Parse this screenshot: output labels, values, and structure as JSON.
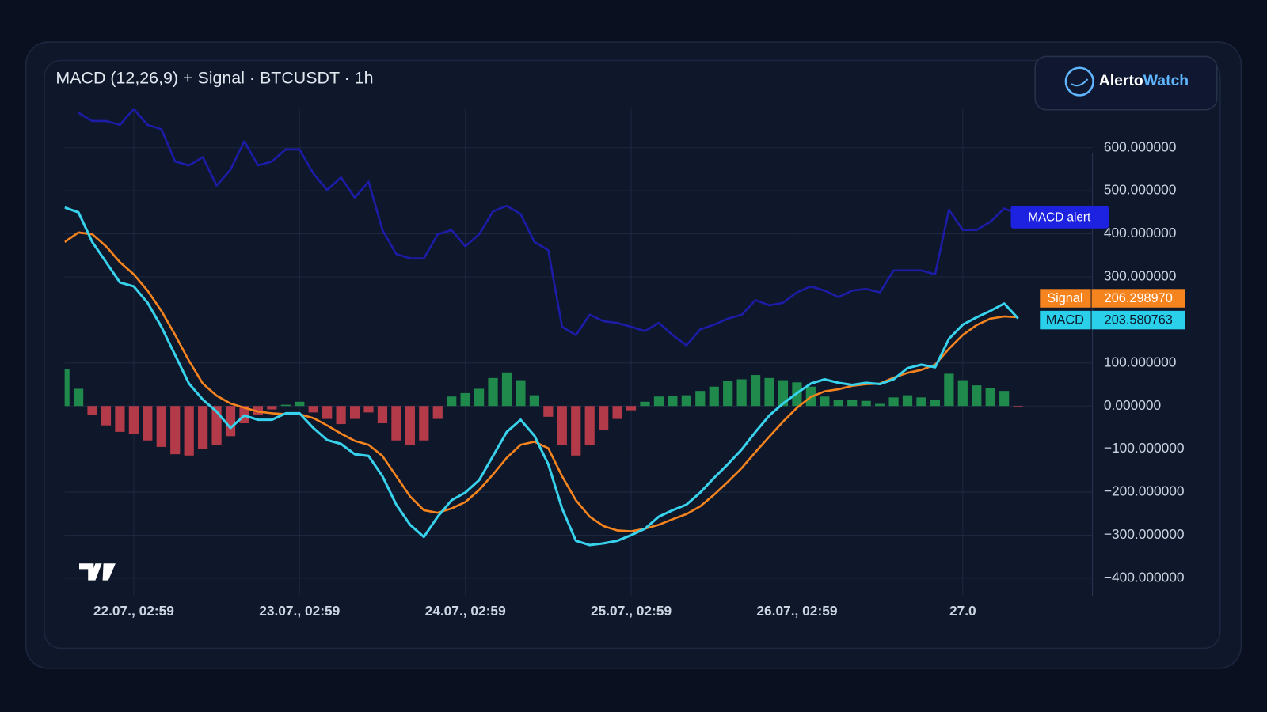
{
  "chart_data": {
    "type": "line",
    "title": "MACD (12,26,9) + Signal · BTCUSDT · 1h",
    "brand": [
      "Alerto",
      "Watch"
    ],
    "annotation": "MACD alert",
    "categories": [
      null,
      null,
      null,
      null,
      null,
      "22.07., 02:59",
      null,
      null,
      null,
      null,
      null,
      null,
      null,
      null,
      null,
      null,
      null,
      "23.07., 02:59",
      null,
      null,
      null,
      null,
      null,
      null,
      null,
      null,
      null,
      null,
      null,
      "24.07., 02:59",
      null,
      null,
      null,
      null,
      null,
      null,
      null,
      null,
      null,
      null,
      null,
      "25.07., 02:59",
      null,
      null,
      null,
      null,
      null,
      null,
      null,
      null,
      null,
      null,
      null,
      "26.07., 02:59",
      null,
      null,
      null,
      null,
      null,
      null,
      null,
      null,
      null,
      null,
      null,
      "27.0",
      null,
      null,
      null,
      null
    ],
    "ylim": [
      -440,
      690
    ],
    "yticks": [
      {
        "value": -400,
        "label": "−400.000000"
      },
      {
        "value": -300,
        "label": "−300.000000"
      },
      {
        "value": -200,
        "label": "−200.000000"
      },
      {
        "value": -100,
        "label": "−100.000000"
      },
      {
        "value": 0,
        "label": "0.000000"
      },
      {
        "value": 100,
        "label": "100.000000"
      },
      {
        "value": 200,
        "label": "200.000000"
      },
      {
        "value": 300,
        "label": "300.000000"
      },
      {
        "value": 400,
        "label": "400.000000"
      },
      {
        "value": 500,
        "label": "500.000000"
      },
      {
        "value": 600,
        "label": "600.000000"
      }
    ],
    "grid": true,
    "series": [
      {
        "color": "#1c1ca6",
        "values": [
          null,
          681,
          662,
          662,
          653,
          690,
          653,
          643,
          568,
          559,
          578,
          512,
          549,
          615,
          559,
          568,
          596,
          596,
          540,
          502,
          531,
          484,
          521,
          409,
          353,
          343,
          343,
          399,
          409,
          371,
          399,
          452,
          465,
          446,
          381,
          362,
          184,
          165,
          212,
          197,
          193,
          184,
          174,
          193,
          165,
          141,
          178,
          189,
          203,
          212,
          246,
          234,
          240,
          264,
          278,
          268,
          253,
          268,
          272,
          264,
          315,
          315,
          315,
          306,
          456,
          409,
          409,
          428,
          459,
          446
        ]
      },
      {
        "type": "bar",
        "color": "#1f8a4c",
        "negative_color": "#b33a48",
        "values": [
          85,
          40,
          -20,
          -45,
          -60,
          -65,
          -80,
          -95,
          -112,
          -115,
          -100,
          -90,
          -70,
          -40,
          -20,
          -8,
          3,
          10,
          -15,
          -30,
          -42,
          -30,
          -15,
          -40,
          -80,
          -90,
          -80,
          -30,
          22,
          30,
          40,
          65,
          78,
          60,
          25,
          -25,
          -90,
          -115,
          -90,
          -55,
          -30,
          -10,
          10,
          22,
          24,
          25,
          35,
          45,
          58,
          62,
          72,
          65,
          60,
          55,
          45,
          22,
          15,
          15,
          12,
          5,
          20,
          25,
          20,
          15,
          75,
          60,
          48,
          42,
          35,
          -3
        ]
      },
      {
        "name": "Signal",
        "color": "#f5841f",
        "values": [
          381,
          403,
          399,
          371,
          334,
          306,
          268,
          221,
          165,
          105,
          52,
          24,
          6,
          -4,
          -13,
          -17,
          -19,
          -19,
          -28,
          -45,
          -64,
          -81,
          -90,
          -116,
          -163,
          -210,
          -242,
          -248,
          -238,
          -223,
          -195,
          -159,
          -120,
          -90,
          -83,
          -98,
          -163,
          -219,
          -257,
          -279,
          -289,
          -291,
          -285,
          -276,
          -263,
          -251,
          -233,
          -206,
          -176,
          -144,
          -107,
          -71,
          -36,
          -4,
          21,
          34,
          39,
          47,
          51,
          52,
          66,
          77,
          84,
          96,
          133,
          165,
          188,
          203,
          208,
          206.29897
        ],
        "value_labels": [
          null,
          null,
          null,
          null,
          null,
          null,
          null,
          null,
          null,
          null,
          null,
          null,
          null,
          null,
          null,
          null,
          null,
          null,
          null,
          null,
          null,
          null,
          null,
          null,
          null,
          null,
          null,
          null,
          null,
          null,
          null,
          null,
          null,
          null,
          null,
          null,
          null,
          null,
          null,
          null,
          null,
          null,
          null,
          null,
          null,
          null,
          null,
          null,
          null,
          null,
          null,
          null,
          null,
          null,
          null,
          null,
          null,
          null,
          null,
          null,
          null,
          null,
          null,
          null,
          null,
          null,
          null,
          null,
          null,
          "206.298970"
        ]
      },
      {
        "name": "MACD",
        "color": "#38d2ec",
        "values": [
          461,
          450,
          381,
          334,
          287,
          278,
          240,
          184,
          118,
          52,
          15,
          -13,
          -51,
          -22,
          -32,
          -32,
          -17,
          -17,
          -51,
          -79,
          -88,
          -112,
          -116,
          -163,
          -229,
          -276,
          -304,
          -257,
          -219,
          -201,
          -172,
          -116,
          -60,
          -32,
          -69,
          -135,
          -238,
          -313,
          -323,
          -319,
          -313,
          -300,
          -285,
          -257,
          -242,
          -229,
          -201,
          -167,
          -135,
          -101,
          -60,
          -22,
          6,
          30,
          52,
          62,
          54,
          49,
          54,
          51,
          62,
          88,
          96,
          90,
          156,
          189,
          206,
          221,
          238,
          203.580763
        ],
        "value_labels": [
          null,
          null,
          null,
          null,
          null,
          null,
          null,
          null,
          null,
          null,
          null,
          null,
          null,
          null,
          null,
          null,
          null,
          null,
          null,
          null,
          null,
          null,
          null,
          null,
          null,
          null,
          null,
          null,
          null,
          null,
          null,
          null,
          null,
          null,
          null,
          null,
          null,
          null,
          null,
          null,
          null,
          null,
          null,
          null,
          null,
          null,
          null,
          null,
          null,
          null,
          null,
          null,
          null,
          null,
          null,
          null,
          null,
          null,
          null,
          null,
          null,
          null,
          null,
          null,
          null,
          null,
          null,
          null,
          null,
          "203.580763"
        ]
      }
    ]
  }
}
